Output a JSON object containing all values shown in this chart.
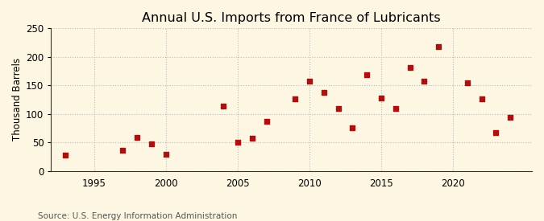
{
  "title": "Annual U.S. Imports from France of Lubricants",
  "ylabel": "Thousand Barrels",
  "source": "Source: U.S. Energy Information Administration",
  "background_color": "#fdf6e3",
  "plot_bg_color": "#fdf6e3",
  "marker_color": "#aa1111",
  "years": [
    1993,
    1997,
    1998,
    1999,
    2000,
    2004,
    2005,
    2006,
    2007,
    2009,
    2010,
    2011,
    2012,
    2013,
    2014,
    2015,
    2016,
    2017,
    2018,
    2019,
    2021,
    2022,
    2023,
    2024
  ],
  "values": [
    28,
    36,
    58,
    47,
    29,
    113,
    50,
    57,
    87,
    126,
    158,
    138,
    110,
    75,
    168,
    128,
    110,
    181,
    158,
    218,
    155,
    126,
    67,
    94
  ],
  "xlim": [
    1992,
    2025.5
  ],
  "ylim": [
    0,
    250
  ],
  "xticks": [
    1995,
    2000,
    2005,
    2010,
    2015,
    2020
  ],
  "yticks": [
    0,
    50,
    100,
    150,
    200,
    250
  ],
  "grid_color": "#bbbbbb",
  "title_fontsize": 11.5,
  "label_fontsize": 8.5,
  "tick_fontsize": 8.5,
  "source_fontsize": 7.5
}
